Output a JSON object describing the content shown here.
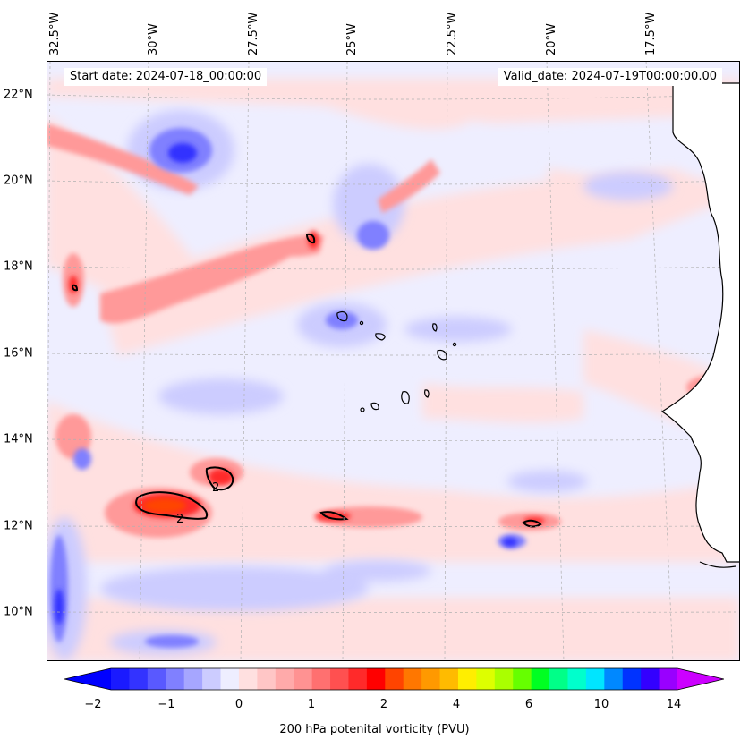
{
  "map": {
    "start_date": "Start date: 2024-07-18_00:00:00",
    "valid_date": "Valid_date: 2024-07-19T00:00:00.00",
    "lon_labels": [
      "32.5°W",
      "30°W",
      "27.5°W",
      "25°W",
      "22.5°W",
      "20°W",
      "17.5°W"
    ],
    "lat_labels": [
      "22°N",
      "20°N",
      "18°N",
      "16°N",
      "14°N",
      "12°N",
      "10°N"
    ],
    "contour_labels": [
      "2",
      "2"
    ],
    "colors": {
      "land": "#ffffff",
      "background_field": "#eeeeff",
      "positive_light": "#ffe0e0",
      "positive_mid": "#ff9999",
      "positive_strong": "#ff2a2a",
      "positive_peak": "#ff4400",
      "negative_light": "#ccccff",
      "negative_mid": "#8080ff",
      "negative_strong": "#3333ff",
      "contour": "#000000",
      "coastline": "#000000"
    }
  },
  "colorbar": {
    "label": "200 hPa potenital vorticity (PVU)",
    "tick_labels": [
      "−2",
      "−1",
      "0",
      "1",
      "2",
      "4",
      "6",
      "10",
      "14"
    ],
    "colors": [
      "#0000ff",
      "#1a1aff",
      "#3333ff",
      "#5959ff",
      "#8080ff",
      "#a6a6ff",
      "#ccccff",
      "#eeeeff",
      "#ffe0e0",
      "#ffc6c6",
      "#ffaaaa",
      "#ff9292",
      "#ff7070",
      "#ff5050",
      "#ff2a2a",
      "#ff0000",
      "#ff4400",
      "#ff7700",
      "#ff9900",
      "#ffbb00",
      "#ffee00",
      "#ddff00",
      "#aaff00",
      "#66ff00",
      "#00ff22",
      "#00ff88",
      "#00ffcc",
      "#00e5ff",
      "#0088ff",
      "#0033ff",
      "#3300ff",
      "#9900ff",
      "#cc00ff"
    ]
  }
}
